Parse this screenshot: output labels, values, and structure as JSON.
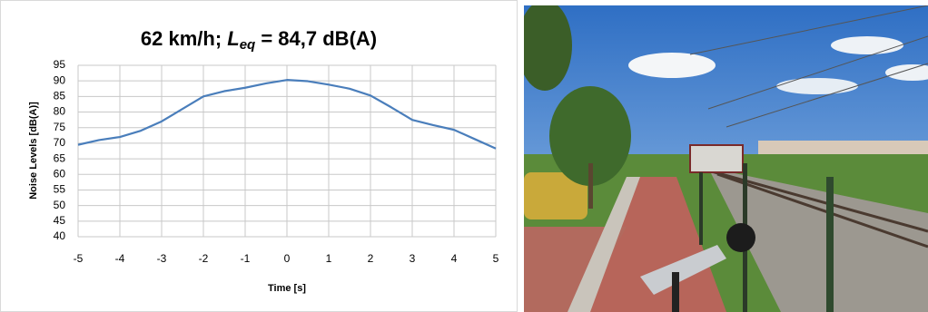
{
  "chart_data": {
    "type": "line",
    "title": [
      "62 km/h; ",
      "L",
      "eq",
      " = 84,7 dB(A)"
    ],
    "x_label": "Time [s]",
    "y_label": "Noise Levels [dB(A)]",
    "x": [
      -5,
      -4.5,
      -4,
      -3.5,
      -3,
      -2.5,
      -2,
      -1.5,
      -1,
      -0.5,
      0,
      0.5,
      1,
      1.5,
      2,
      2.5,
      3,
      3.5,
      4,
      4.5,
      5
    ],
    "values": [
      69.5,
      71,
      72,
      74,
      77,
      81,
      85,
      86.7,
      87.8,
      89.2,
      90.3,
      89.9,
      88.8,
      87.5,
      85.3,
      81.5,
      77.5,
      75.8,
      74.3,
      71.3,
      68.3
    ],
    "color": "#4a7ebb",
    "xlim": [
      -5,
      5
    ],
    "xticks": [
      -5,
      -4,
      -3,
      -2,
      -1,
      0,
      1,
      2,
      3,
      4,
      5
    ],
    "ylim": [
      40,
      95
    ],
    "yticks": [
      40,
      45,
      50,
      55,
      60,
      65,
      70,
      75,
      80,
      85,
      90,
      95
    ],
    "grid": true
  }
}
